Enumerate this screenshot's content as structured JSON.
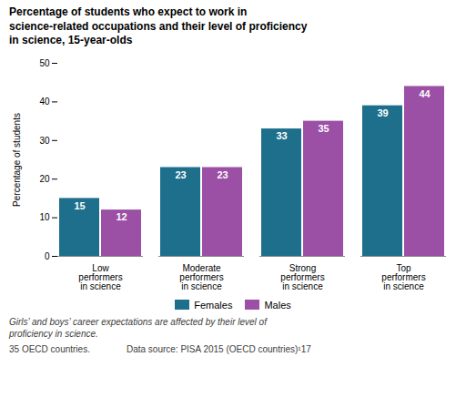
{
  "chart_data": {
    "type": "bar",
    "title": "Percentage of students who expect to work in\nscience-related occupations and their level of proficiency\nin science, 15-year-olds",
    "categories": [
      "Low\nperformers\nin science",
      "Moderate\nperformers\nin science",
      "Strong\nperformers\nin science",
      "Top\nperformers\nin science"
    ],
    "series": [
      {
        "name": "Females",
        "color": "#1d6f8c",
        "values": [
          15,
          23,
          33,
          39
        ]
      },
      {
        "name": "Males",
        "color": "#9b50a5",
        "values": [
          12,
          23,
          35,
          44
        ]
      }
    ],
    "ylabel": "Percentage of students",
    "ylim": [
      0,
      50
    ],
    "yticks": [
      0,
      10,
      20,
      30,
      40,
      50
    ],
    "grid": false,
    "legend": "bottom",
    "data_labels": true,
    "annotations": [
      "Girls’ and boys’ career expectations are affected by their level of\nproficiency in science.",
      "35 OECD countries.",
      "Data source: PISA 2015 (OECD countries)¹17"
    ]
  }
}
